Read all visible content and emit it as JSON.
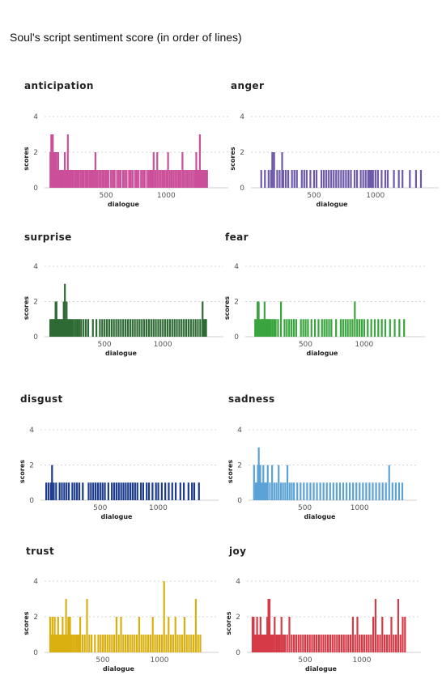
{
  "title": "Soul's script sentiment score (in order of lines)",
  "chart_data": [
    {
      "type": "bar",
      "title": "anticipation",
      "color": "#cc4f9a",
      "xlabel": "dialogue",
      "ylabel": "scores",
      "xlim": [
        0,
        1450
      ],
      "ylim": [
        0,
        4
      ],
      "yticks": [
        0,
        2,
        4
      ],
      "xticks": [
        500,
        1000
      ],
      "x": [
        35,
        40,
        42,
        48,
        55,
        60,
        65,
        70,
        73,
        80,
        85,
        90,
        100,
        110,
        115,
        118,
        125,
        130,
        140,
        150,
        155,
        165,
        172,
        180,
        190,
        200,
        208,
        215,
        225,
        240,
        250,
        260,
        270,
        285,
        300,
        310,
        325,
        335,
        345,
        360,
        370,
        380,
        390,
        400,
        410,
        425,
        440,
        455,
        470,
        480,
        495,
        505,
        520,
        540,
        555,
        570,
        590,
        605,
        620,
        640,
        655,
        670,
        690,
        705,
        720,
        740,
        755,
        770,
        790,
        805,
        820,
        840,
        855,
        870,
        880,
        885,
        895,
        910,
        925,
        940,
        955,
        970,
        985,
        1000,
        1015,
        1030,
        1045,
        1060,
        1075,
        1090,
        1105,
        1120,
        1135,
        1150,
        1165,
        1180,
        1195,
        1210,
        1225,
        1240,
        1250,
        1255,
        1265,
        1270,
        1280,
        1290,
        1300,
        1310,
        1320,
        1330,
        1340
      ],
      "y": [
        2,
        1,
        3,
        1,
        3,
        2,
        1,
        1,
        2,
        1,
        2,
        1,
        2,
        1,
        1,
        1,
        1,
        1,
        1,
        1,
        2,
        1,
        1,
        3,
        1,
        1,
        1,
        1,
        1,
        1,
        1,
        1,
        1,
        1,
        1,
        1,
        1,
        1,
        1,
        1,
        1,
        1,
        1,
        1,
        2,
        1,
        1,
        1,
        1,
        1,
        1,
        1,
        1,
        1,
        1,
        1,
        1,
        1,
        1,
        1,
        1,
        1,
        1,
        1,
        1,
        1,
        1,
        1,
        1,
        1,
        1,
        1,
        1,
        1,
        1,
        1,
        2,
        1,
        2,
        1,
        1,
        1,
        1,
        1,
        2,
        1,
        1,
        1,
        1,
        1,
        1,
        1,
        2,
        1,
        1,
        1,
        1,
        1,
        1,
        1,
        2,
        1,
        1,
        1,
        3,
        1,
        1,
        1,
        1,
        1,
        1
      ]
    },
    {
      "type": "bar",
      "title": "anger",
      "color": "#6e5aa8",
      "xlabel": "dialogue",
      "ylabel": "scores",
      "xlim": [
        0,
        1450
      ],
      "ylim": [
        0,
        4
      ],
      "yticks": [
        0,
        2,
        4
      ],
      "xticks": [
        500,
        1000
      ],
      "x": [
        70,
        100,
        130,
        150,
        160,
        175,
        200,
        220,
        240,
        250,
        270,
        290,
        320,
        340,
        360,
        400,
        420,
        440,
        470,
        500,
        520,
        560,
        580,
        600,
        620,
        640,
        660,
        680,
        700,
        720,
        740,
        760,
        780,
        800,
        830,
        850,
        880,
        900,
        920,
        940,
        950,
        960,
        970,
        980,
        1000,
        1020,
        1050,
        1080,
        1100,
        1150,
        1190,
        1220,
        1280,
        1330,
        1370
      ],
      "y": [
        1,
        1,
        1,
        1,
        2,
        2,
        1,
        1,
        2,
        1,
        1,
        1,
        1,
        1,
        1,
        1,
        1,
        1,
        1,
        1,
        1,
        1,
        1,
        1,
        1,
        1,
        1,
        1,
        1,
        1,
        1,
        1,
        1,
        1,
        1,
        1,
        1,
        1,
        1,
        1,
        1,
        1,
        1,
        1,
        1,
        1,
        1,
        1,
        1,
        1,
        1,
        1,
        1,
        1,
        1
      ]
    },
    {
      "type": "bar",
      "title": "surprise",
      "color": "#2e6b34",
      "xlabel": "dialogue",
      "ylabel": "scores",
      "xlim": [
        0,
        1450
      ],
      "ylim": [
        0,
        4
      ],
      "yticks": [
        0,
        2,
        4
      ],
      "xticks": [
        500,
        1000
      ],
      "x": [
        35,
        45,
        55,
        65,
        75,
        80,
        88,
        95,
        105,
        112,
        120,
        130,
        140,
        150,
        160,
        170,
        175,
        185,
        195,
        205,
        215,
        225,
        240,
        255,
        270,
        285,
        300,
        320,
        340,
        360,
        400,
        430,
        460,
        480,
        500,
        520,
        540,
        560,
        580,
        600,
        620,
        640,
        660,
        680,
        700,
        720,
        740,
        760,
        780,
        800,
        820,
        840,
        860,
        880,
        900,
        920,
        940,
        960,
        980,
        1000,
        1020,
        1040,
        1060,
        1080,
        1100,
        1120,
        1140,
        1160,
        1180,
        1200,
        1220,
        1240,
        1260,
        1280,
        1300,
        1320,
        1340,
        1350,
        1360,
        1370
      ],
      "y": [
        1,
        1,
        1,
        1,
        1,
        2,
        2,
        1,
        1,
        1,
        1,
        1,
        1,
        2,
        3,
        1,
        2,
        1,
        1,
        1,
        1,
        1,
        1,
        1,
        1,
        1,
        1,
        1,
        1,
        1,
        1,
        1,
        1,
        1,
        1,
        1,
        1,
        1,
        1,
        1,
        1,
        1,
        1,
        1,
        1,
        1,
        1,
        1,
        1,
        1,
        1,
        1,
        1,
        1,
        1,
        1,
        1,
        1,
        1,
        1,
        1,
        1,
        1,
        1,
        1,
        1,
        1,
        1,
        1,
        1,
        1,
        1,
        1,
        1,
        1,
        1,
        2,
        1,
        1,
        1
      ]
    },
    {
      "type": "bar",
      "title": "fear",
      "color": "#3aa53e",
      "xlabel": "dialogue",
      "ylabel": "scores",
      "xlim": [
        0,
        1450
      ],
      "ylim": [
        0,
        4
      ],
      "yticks": [
        0,
        2,
        4
      ],
      "xticks": [
        500,
        1000
      ],
      "x": [
        70,
        80,
        90,
        100,
        110,
        120,
        130,
        140,
        150,
        160,
        170,
        180,
        190,
        200,
        215,
        230,
        245,
        265,
        290,
        320,
        340,
        360,
        380,
        400,
        420,
        460,
        480,
        500,
        520,
        550,
        580,
        610,
        640,
        660,
        680,
        700,
        720,
        760,
        800,
        820,
        840,
        860,
        880,
        900,
        920,
        940,
        960,
        980,
        1000,
        1030,
        1060,
        1090,
        1120,
        1150,
        1180,
        1220,
        1260,
        1300,
        1340
      ],
      "y": [
        1,
        1,
        2,
        2,
        1,
        1,
        1,
        1,
        2,
        1,
        1,
        1,
        1,
        1,
        1,
        1,
        1,
        1,
        2,
        1,
        1,
        1,
        1,
        1,
        1,
        1,
        1,
        1,
        1,
        1,
        1,
        1,
        1,
        1,
        1,
        1,
        1,
        1,
        1,
        1,
        1,
        1,
        1,
        1,
        2,
        1,
        1,
        1,
        1,
        1,
        1,
        1,
        1,
        1,
        1,
        1,
        1,
        1,
        1
      ]
    },
    {
      "type": "bar",
      "title": "disgust",
      "color": "#1c3b8c",
      "xlabel": "dialogue",
      "ylabel": "scores",
      "xlim": [
        0,
        1450
      ],
      "ylim": [
        0,
        4
      ],
      "yticks": [
        0,
        2,
        4
      ],
      "xticks": [
        500,
        1000
      ],
      "x": [
        35,
        55,
        75,
        85,
        100,
        120,
        150,
        170,
        190,
        210,
        230,
        260,
        280,
        300,
        320,
        350,
        400,
        420,
        440,
        460,
        480,
        500,
        520,
        540,
        570,
        600,
        620,
        640,
        660,
        680,
        700,
        720,
        740,
        760,
        780,
        800,
        820,
        850,
        870,
        900,
        920,
        950,
        980,
        1000,
        1030,
        1060,
        1090,
        1120,
        1150,
        1190,
        1220,
        1260,
        1290,
        1310,
        1350
      ],
      "y": [
        1,
        1,
        1,
        2,
        1,
        1,
        1,
        1,
        1,
        1,
        1,
        1,
        1,
        1,
        1,
        1,
        1,
        1,
        1,
        1,
        1,
        1,
        1,
        1,
        1,
        1,
        1,
        1,
        1,
        1,
        1,
        1,
        1,
        1,
        1,
        1,
        1,
        1,
        1,
        1,
        1,
        1,
        1,
        1,
        1,
        1,
        1,
        1,
        1,
        1,
        1,
        1,
        1,
        1,
        1
      ]
    },
    {
      "type": "bar",
      "title": "sadness",
      "color": "#5ba3d6",
      "xlabel": "dialogue",
      "ylabel": "scores",
      "xlim": [
        0,
        1450
      ],
      "ylim": [
        0,
        4
      ],
      "yticks": [
        0,
        2,
        4
      ],
      "xticks": [
        500,
        1000
      ],
      "x": [
        35,
        50,
        60,
        70,
        78,
        85,
        92,
        100,
        110,
        120,
        130,
        140,
        150,
        160,
        180,
        200,
        220,
        240,
        260,
        280,
        300,
        320,
        340,
        360,
        380,
        400,
        430,
        460,
        490,
        520,
        550,
        580,
        610,
        640,
        670,
        700,
        730,
        760,
        790,
        820,
        850,
        880,
        910,
        940,
        970,
        1000,
        1030,
        1060,
        1090,
        1120,
        1150,
        1180,
        1210,
        1240,
        1270,
        1300,
        1330,
        1360,
        1390
      ],
      "y": [
        2,
        1,
        1,
        2,
        3,
        1,
        2,
        1,
        1,
        2,
        1,
        1,
        1,
        2,
        1,
        2,
        1,
        1,
        2,
        1,
        1,
        1,
        2,
        1,
        1,
        1,
        1,
        1,
        1,
        1,
        1,
        1,
        1,
        1,
        1,
        1,
        1,
        1,
        1,
        1,
        1,
        1,
        1,
        1,
        1,
        1,
        1,
        1,
        1,
        1,
        1,
        1,
        1,
        1,
        2,
        1,
        1,
        1,
        1
      ]
    },
    {
      "type": "bar",
      "title": "trust",
      "color": "#d9b010",
      "xlabel": "dialogue",
      "ylabel": "scores",
      "xlim": [
        0,
        1450
      ],
      "ylim": [
        0,
        4
      ],
      "yticks": [
        0,
        2,
        4
      ],
      "xticks": [
        500,
        1000
      ],
      "x": [
        35,
        45,
        55,
        65,
        75,
        85,
        95,
        105,
        115,
        125,
        135,
        145,
        160,
        175,
        185,
        195,
        210,
        225,
        240,
        255,
        270,
        285,
        300,
        320,
        340,
        360,
        380,
        400,
        430,
        460,
        480,
        500,
        520,
        540,
        560,
        580,
        600,
        620,
        640,
        660,
        680,
        700,
        720,
        740,
        760,
        780,
        800,
        820,
        840,
        860,
        880,
        900,
        920,
        940,
        960,
        980,
        1000,
        1020,
        1040,
        1060,
        1080,
        1100,
        1120,
        1140,
        1160,
        1180,
        1200,
        1220,
        1240,
        1260,
        1280,
        1300,
        1320,
        1340,
        1360
      ],
      "y": [
        2,
        1,
        2,
        1,
        2,
        1,
        1,
        2,
        1,
        1,
        1,
        2,
        1,
        3,
        1,
        2,
        2,
        1,
        1,
        1,
        1,
        1,
        2,
        1,
        1,
        3,
        1,
        1,
        1,
        1,
        1,
        1,
        1,
        1,
        1,
        1,
        1,
        2,
        1,
        2,
        1,
        1,
        1,
        1,
        1,
        1,
        1,
        2,
        1,
        1,
        1,
        1,
        1,
        2,
        1,
        1,
        1,
        1,
        4,
        1,
        2,
        1,
        1,
        2,
        1,
        1,
        1,
        2,
        1,
        1,
        1,
        1,
        3,
        1,
        1
      ]
    },
    {
      "type": "bar",
      "title": "joy",
      "color": "#d63a47",
      "xlabel": "dialogue",
      "ylabel": "scores",
      "xlim": [
        0,
        1450
      ],
      "ylim": [
        0,
        4
      ],
      "yticks": [
        0,
        2,
        4
      ],
      "xticks": [
        500,
        1000
      ],
      "x": [
        35,
        45,
        55,
        65,
        75,
        85,
        95,
        105,
        115,
        125,
        135,
        145,
        155,
        165,
        175,
        185,
        195,
        205,
        215,
        230,
        245,
        260,
        275,
        290,
        305,
        320,
        340,
        360,
        380,
        400,
        420,
        440,
        460,
        480,
        500,
        520,
        540,
        560,
        580,
        600,
        620,
        640,
        660,
        680,
        700,
        720,
        740,
        760,
        780,
        800,
        820,
        840,
        860,
        880,
        900,
        920,
        940,
        960,
        980,
        1000,
        1020,
        1040,
        1060,
        1080,
        1100,
        1120,
        1140,
        1160,
        1180,
        1200,
        1220,
        1240,
        1260,
        1280,
        1300,
        1320,
        1340,
        1360,
        1380
      ],
      "y": [
        2,
        2,
        1,
        1,
        2,
        1,
        1,
        2,
        1,
        1,
        1,
        1,
        1,
        2,
        3,
        3,
        1,
        1,
        1,
        2,
        1,
        1,
        1,
        2,
        1,
        1,
        1,
        2,
        1,
        1,
        1,
        1,
        1,
        1,
        1,
        1,
        1,
        1,
        1,
        1,
        1,
        1,
        1,
        1,
        1,
        1,
        1,
        1,
        1,
        1,
        1,
        1,
        1,
        1,
        1,
        2,
        1,
        2,
        1,
        1,
        1,
        1,
        1,
        1,
        2,
        3,
        1,
        1,
        2,
        1,
        1,
        1,
        2,
        1,
        1,
        3,
        1,
        2,
        2
      ]
    }
  ]
}
